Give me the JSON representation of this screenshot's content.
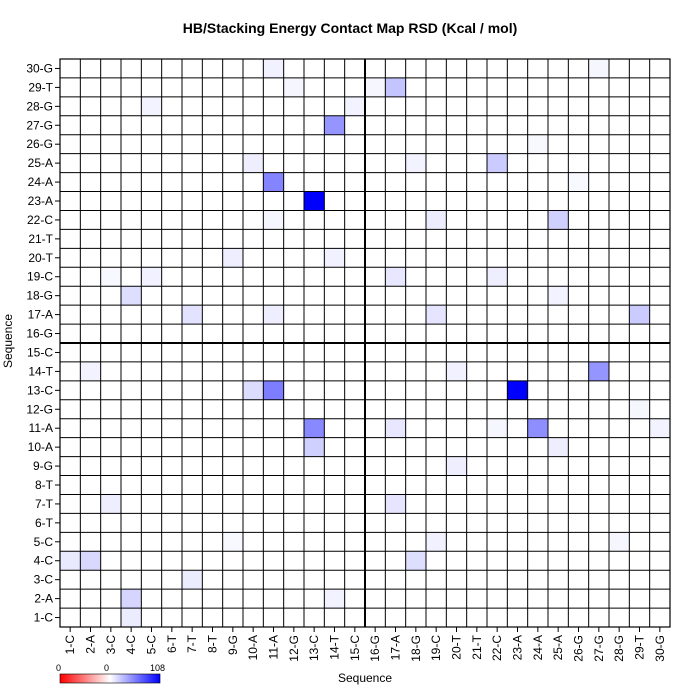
{
  "chart_data": {
    "type": "heatmap",
    "title": "HB/Stacking Energy Contact Map RSD (Kcal / mol)",
    "xlabel": "Sequence",
    "ylabel": "Sequence",
    "x_labels": [
      "1-C",
      "2-A",
      "3-C",
      "4-C",
      "5-C",
      "6-T",
      "7-T",
      "8-T",
      "9-G",
      "10-A",
      "11-A",
      "12-G",
      "13-C",
      "14-T",
      "15-C",
      "16-G",
      "17-A",
      "18-G",
      "19-C",
      "20-T",
      "21-T",
      "22-C",
      "23-A",
      "24-A",
      "25-A",
      "26-G",
      "27-G",
      "28-G",
      "29-T",
      "30-G"
    ],
    "y_labels": [
      "1-C",
      "2-A",
      "3-C",
      "4-C",
      "5-C",
      "6-T",
      "7-T",
      "8-T",
      "9-G",
      "10-A",
      "11-A",
      "12-G",
      "13-C",
      "14-T",
      "15-C",
      "16-G",
      "17-A",
      "18-G",
      "19-C",
      "20-T",
      "21-T",
      "22-C",
      "23-A",
      "24-A",
      "25-A",
      "26-G",
      "27-G",
      "28-G",
      "29-T",
      "30-G"
    ],
    "legend": {
      "min_label": "0",
      "mid_label": "0",
      "max_label": "108",
      "vmin": 0,
      "vmax": 108,
      "colors": [
        "#ff0000",
        "#ffffff",
        "#0000ff"
      ]
    },
    "cells": [
      {
        "x": "13-C",
        "y": "23-A",
        "v": 108
      },
      {
        "x": "23-A",
        "y": "13-C",
        "v": 108
      },
      {
        "x": "11-A",
        "y": "24-A",
        "v": 52
      },
      {
        "x": "11-A",
        "y": "13-C",
        "v": 55
      },
      {
        "x": "24-A",
        "y": "11-A",
        "v": 48
      },
      {
        "x": "13-C",
        "y": "11-A",
        "v": 50
      },
      {
        "x": "14-T",
        "y": "27-G",
        "v": 45
      },
      {
        "x": "27-G",
        "y": "14-T",
        "v": 45
      },
      {
        "x": "17-A",
        "y": "29-T",
        "v": 25
      },
      {
        "x": "29-T",
        "y": "17-A",
        "v": 22
      },
      {
        "x": "22-C",
        "y": "25-A",
        "v": 22
      },
      {
        "x": "25-A",
        "y": "22-C",
        "v": 20
      },
      {
        "x": "13-C",
        "y": "10-A",
        "v": 20
      },
      {
        "x": "10-A",
        "y": "13-C",
        "v": 15
      },
      {
        "x": "2-A",
        "y": "4-C",
        "v": 16
      },
      {
        "x": "4-C",
        "y": "2-A",
        "v": 18
      },
      {
        "x": "4-C",
        "y": "18-G",
        "v": 14
      },
      {
        "x": "18-G",
        "y": "4-C",
        "v": 14
      },
      {
        "x": "7-T",
        "y": "17-A",
        "v": 12
      },
      {
        "x": "7-T",
        "y": "3-C",
        "v": 8
      },
      {
        "x": "17-A",
        "y": "7-T",
        "v": 11
      },
      {
        "x": "17-A",
        "y": "19-C",
        "v": 10
      },
      {
        "x": "17-A",
        "y": "11-A",
        "v": 10
      },
      {
        "x": "3-C",
        "y": "7-T",
        "v": 7
      },
      {
        "x": "19-C",
        "y": "17-A",
        "v": 11
      },
      {
        "x": "19-C",
        "y": "22-C",
        "v": 8
      },
      {
        "x": "1-C",
        "y": "4-C",
        "v": 9
      },
      {
        "x": "4-C",
        "y": "1-C",
        "v": 8
      },
      {
        "x": "9-G",
        "y": "20-T",
        "v": 7
      },
      {
        "x": "20-T",
        "y": "9-G",
        "v": 7
      },
      {
        "x": "10-A",
        "y": "25-A",
        "v": 7
      },
      {
        "x": "25-A",
        "y": "10-A",
        "v": 7
      },
      {
        "x": "11-A",
        "y": "30-G",
        "v": 6
      },
      {
        "x": "11-A",
        "y": "17-A",
        "v": 7
      },
      {
        "x": "5-C",
        "y": "19-C",
        "v": 6
      },
      {
        "x": "19-C",
        "y": "5-C",
        "v": 6
      },
      {
        "x": "22-C",
        "y": "19-C",
        "v": 7
      },
      {
        "x": "18-G",
        "y": "25-A",
        "v": 5
      },
      {
        "x": "25-A",
        "y": "18-G",
        "v": 5
      },
      {
        "x": "20-T",
        "y": "14-T",
        "v": 6
      },
      {
        "x": "14-T",
        "y": "20-T",
        "v": 6
      },
      {
        "x": "5-C",
        "y": "28-G",
        "v": 5
      },
      {
        "x": "15-C",
        "y": "28-G",
        "v": 5
      },
      {
        "x": "14-T",
        "y": "2-A",
        "v": 5
      },
      {
        "x": "2-A",
        "y": "14-T",
        "v": 5
      },
      {
        "x": "16-G",
        "y": "29-T",
        "v": 4
      },
      {
        "x": "29-T",
        "y": "12-G",
        "v": 4
      },
      {
        "x": "27-G",
        "y": "30-G",
        "v": 4
      },
      {
        "x": "30-G",
        "y": "11-A",
        "v": 5
      },
      {
        "x": "12-G",
        "y": "29-T",
        "v": 4
      },
      {
        "x": "22-C",
        "y": "11-A",
        "v": 4
      },
      {
        "x": "28-G",
        "y": "5-C",
        "v": 4
      },
      {
        "x": "26-G",
        "y": "24-A",
        "v": 3
      },
      {
        "x": "24-A",
        "y": "26-G",
        "v": 3
      },
      {
        "x": "11-A",
        "y": "22-C",
        "v": 4
      },
      {
        "x": "3-C",
        "y": "19-C",
        "v": 3
      },
      {
        "x": "9-G",
        "y": "5-C",
        "v": 3
      }
    ]
  }
}
